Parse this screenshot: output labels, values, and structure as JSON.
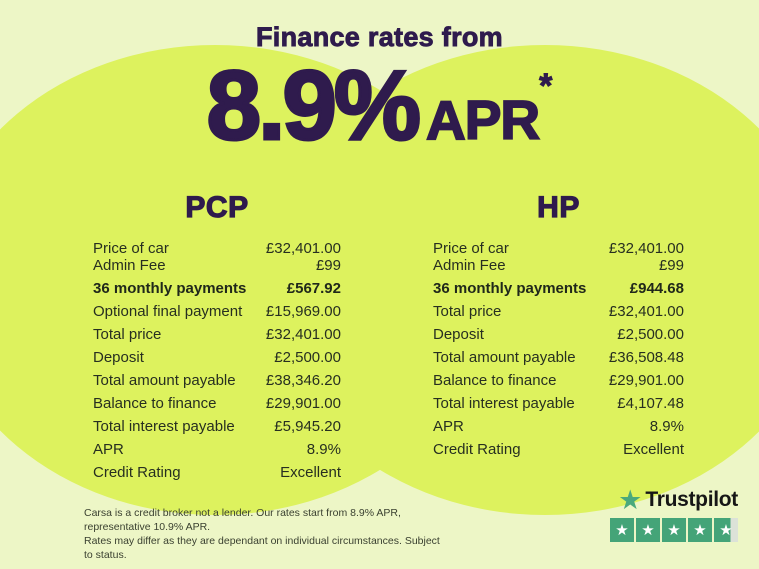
{
  "header": {
    "title": "Finance rates from",
    "rate": "8.9%",
    "rate_suffix": "APR",
    "rate_asterisk": "*"
  },
  "tables": {
    "pcp": {
      "title": "PCP",
      "rows": [
        {
          "label": "Price of car",
          "value": "£32,401.00"
        },
        {
          "label": "Admin Fee",
          "value": "£99"
        },
        {
          "label": "36 monthly payments",
          "value": "£567.92"
        },
        {
          "label": "Optional final payment",
          "value": "£15,969.00"
        },
        {
          "label": "Total price",
          "value": "£32,401.00"
        },
        {
          "label": "Deposit",
          "value": "£2,500.00"
        },
        {
          "label": "Total amount payable",
          "value": "£38,346.20"
        },
        {
          "label": "Balance to finance",
          "value": "£29,901.00"
        },
        {
          "label": "Total interest payable",
          "value": "£5,945.20"
        },
        {
          "label": "APR",
          "value": "8.9%"
        },
        {
          "label": "Credit Rating",
          "value": "Excellent"
        }
      ]
    },
    "hp": {
      "title": "HP",
      "rows": [
        {
          "label": "Price of car",
          "value": "£32,401.00"
        },
        {
          "label": "Admin Fee",
          "value": "£99"
        },
        {
          "label": "36 monthly payments",
          "value": "£944.68"
        },
        {
          "label": "Total price",
          "value": "£32,401.00"
        },
        {
          "label": "Deposit",
          "value": "£2,500.00"
        },
        {
          "label": "Total amount payable",
          "value": "£36,508.48"
        },
        {
          "label": "Balance to finance",
          "value": "£29,901.00"
        },
        {
          "label": "Total interest payable",
          "value": "£4,107.48"
        },
        {
          "label": "APR",
          "value": "8.9%"
        },
        {
          "label": "Credit Rating",
          "value": "Excellent"
        }
      ]
    }
  },
  "disclaimer": {
    "line1": "Carsa is a credit broker not a lender. Our rates start from 8.9% APR, representative 10.9% APR.",
    "line2": "Rates may differ as they are dependant on individual circumstances. Subject to status."
  },
  "trustpilot": {
    "brand": "Trustpilot",
    "rating_stars": "4.5"
  },
  "icons": {
    "star": "★"
  },
  "colors": {
    "background": "#edf6c6",
    "ellipse": "#ddf25e",
    "accent_purple": "#2f1b4d",
    "body_text": "#272f20",
    "trustpilot_green": "#44a478",
    "trustpilot_empty": "#dce2d8"
  }
}
